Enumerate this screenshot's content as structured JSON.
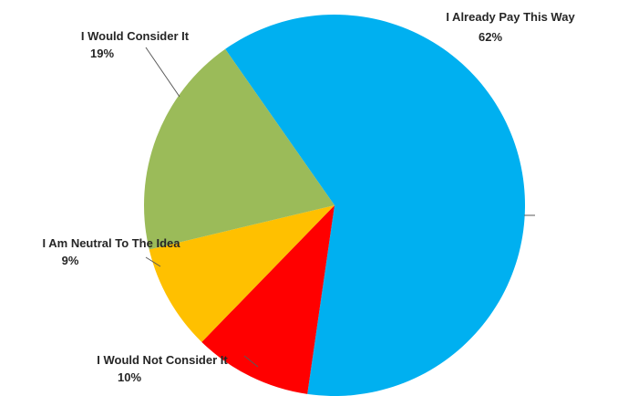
{
  "chart_data": {
    "type": "pie",
    "title": "",
    "slices": [
      {
        "label": "I Already Pay This Way",
        "value": 62,
        "value_label": "62%",
        "color": "#00B0F0"
      },
      {
        "label": "I Would Not Consider It",
        "value": 10,
        "value_label": "10%",
        "color": "#FF0000"
      },
      {
        "label": "I Am Neutral To The Idea",
        "value": 9,
        "value_label": "9%",
        "color": "#FFC000"
      },
      {
        "label": "I Would Consider It",
        "value": 19,
        "value_label": "19%",
        "color": "#9BBB59"
      }
    ],
    "start_angle_deg": -35,
    "direction": "clockwise",
    "legend": "none",
    "data_labels": "outside-with-leader-lines"
  }
}
